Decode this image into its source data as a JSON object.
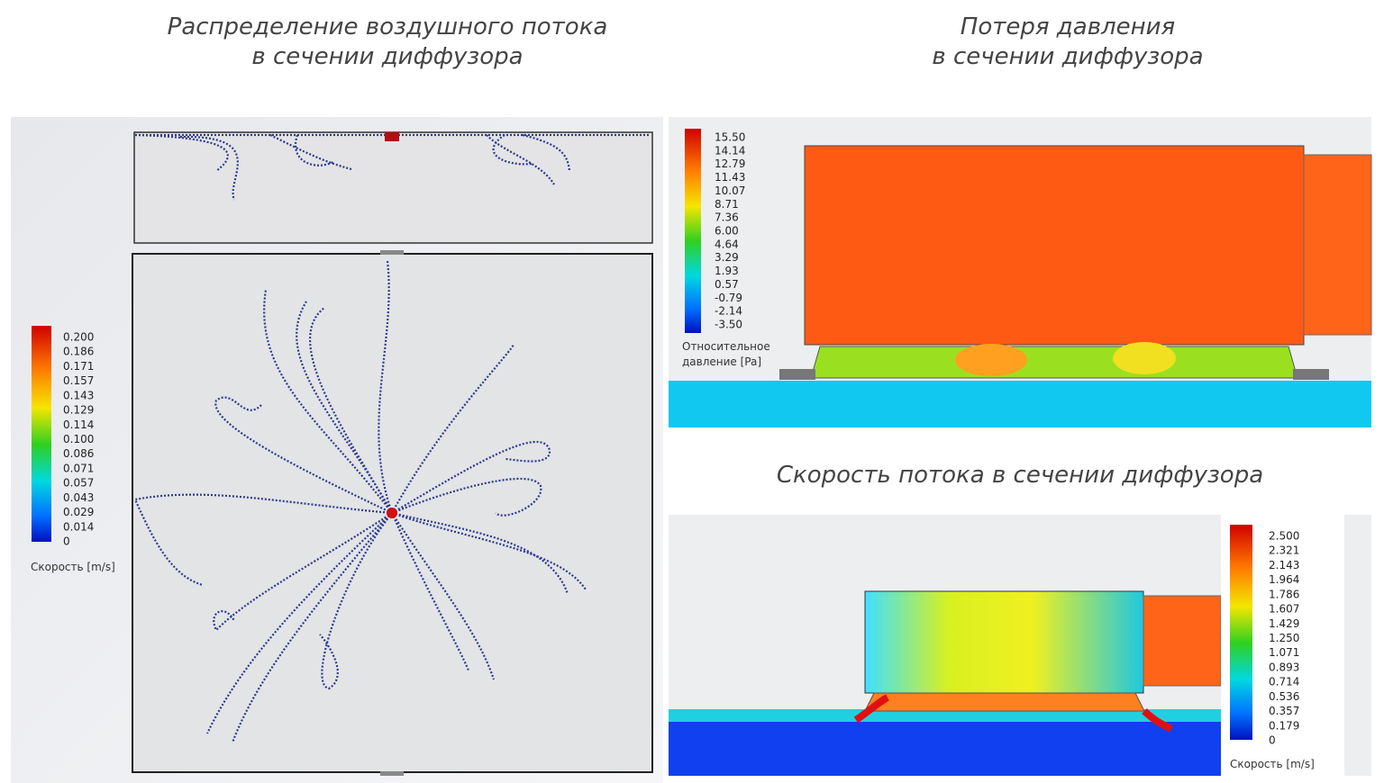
{
  "airflow": {
    "title": [
      "Распределение воздушного потока",
      "в сечении диффузора"
    ],
    "legend": {
      "ticks": [
        "0.200",
        "0.186",
        "0.171",
        "0.157",
        "0.143",
        "0.129",
        "0.114",
        "0.100",
        "0.086",
        "0.071",
        "0.057",
        "0.043",
        "0.029",
        "0.014",
        "0"
      ],
      "title": "Скорость [m/s]"
    }
  },
  "pressure": {
    "title": [
      "Потеря давления",
      "в сечении диффузора"
    ],
    "legend": {
      "ticks": [
        "15.50",
        "14.14",
        "12.79",
        "11.43",
        "10.07",
        "8.71",
        "7.36",
        "6.00",
        "4.64",
        "3.29",
        "1.93",
        "0.57",
        "-0.79",
        "-2.14",
        "-3.50"
      ],
      "title": [
        "Относительное",
        "давление [Pa]"
      ]
    }
  },
  "velocity": {
    "title": "Скорость потока в сечении диффузора",
    "legend": {
      "ticks": [
        "2.500",
        "2.321",
        "2.143",
        "1.964",
        "1.786",
        "1.607",
        "1.429",
        "1.250",
        "1.071",
        "0.893",
        "0.714",
        "0.536",
        "0.357",
        "0.179",
        "0"
      ],
      "title": "Скорость [m/s]"
    }
  }
}
